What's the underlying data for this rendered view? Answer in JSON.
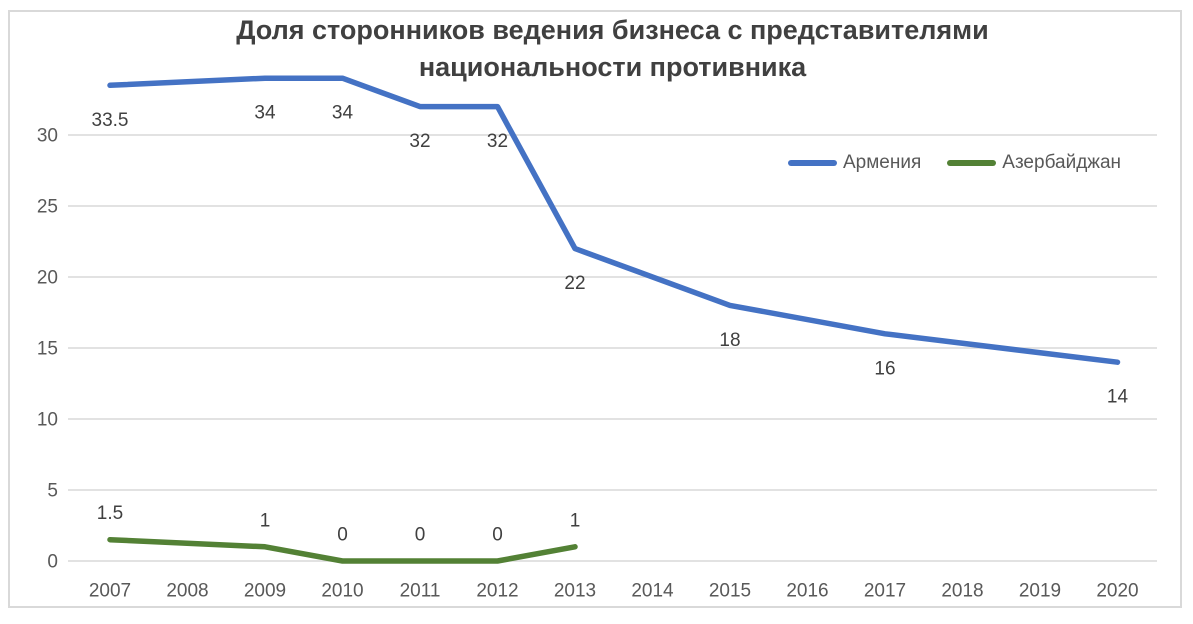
{
  "chart_data": {
    "type": "line",
    "title": "Доля сторонников ведения бизнеса с представителями национальности противника",
    "title_line1": "Доля сторонников ведения бизнеса с представителями",
    "title_line2": "национальности противника",
    "xlabel": "",
    "ylabel": "",
    "categories": [
      "2007",
      "2008",
      "2009",
      "2010",
      "2011",
      "2012",
      "2013",
      "2014",
      "2015",
      "2016",
      "2017",
      "2018",
      "2019",
      "2020"
    ],
    "series": [
      {
        "key": "armenia",
        "name": "Армения",
        "color": "#4472C4",
        "label_position": "below",
        "values": [
          33.5,
          null,
          34,
          34,
          32,
          32,
          22,
          null,
          18,
          null,
          16,
          null,
          null,
          14
        ],
        "labels": [
          "33.5",
          null,
          "34",
          "34",
          "32",
          "32",
          "22",
          null,
          "18",
          null,
          "16",
          null,
          null,
          "14"
        ]
      },
      {
        "key": "azerbaijan",
        "name": "Азербайджан",
        "color": "#538135",
        "label_position": "above",
        "values": [
          1.5,
          null,
          1,
          0,
          0,
          0,
          1,
          null,
          null,
          null,
          null,
          null,
          null,
          null
        ],
        "labels": [
          "1.5",
          null,
          "1",
          "0",
          "0",
          "0",
          "1",
          null,
          null,
          null,
          null,
          null,
          null,
          null
        ]
      }
    ],
    "y_ticks": [
      0,
      5,
      10,
      15,
      20,
      25,
      30
    ],
    "ylim": [
      0,
      35
    ],
    "grid": "horizontal",
    "legend_position": "inside-top-right",
    "colors": {
      "gridline": "#d9d9d9",
      "axis_text": "#595959",
      "data_label": "#404040",
      "title_text": "#404040",
      "frame_border": "#d9d9d9",
      "series_armenia": "#4472C4",
      "series_azerbaijan": "#538135"
    }
  }
}
